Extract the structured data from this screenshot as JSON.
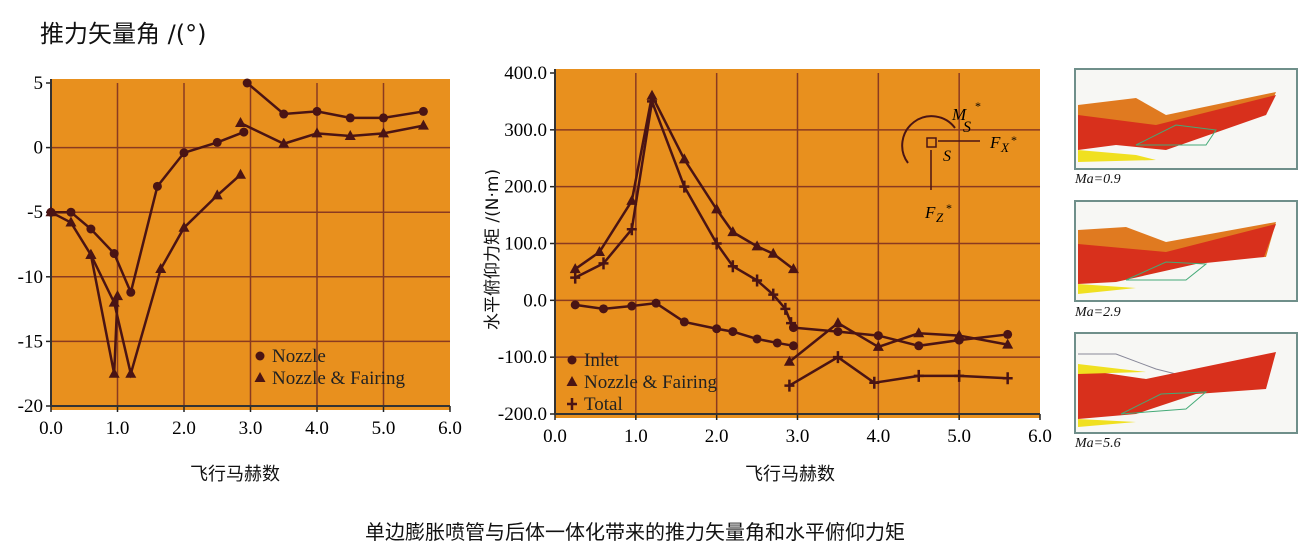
{
  "caption": "单边膨胀喷管与后体一体化带来的推力矢量角和水平俯仰力矩",
  "colors": {
    "plot_bg": "#e8901e",
    "grid": "#8a3a20",
    "line": "#4a1414"
  },
  "chart_data": [
    {
      "type": "line",
      "title": "推力矢量角 /(°)",
      "xlabel": "飞行马赫数",
      "ylabel": "",
      "xlim": [
        0,
        6
      ],
      "ylim": [
        -20,
        5
      ],
      "xticks": [
        "0.0",
        "1.0",
        "2.0",
        "3.0",
        "4.0",
        "5.0",
        "6.0"
      ],
      "yticks": [
        "5",
        "0",
        "-5",
        "-10",
        "-15",
        "-20"
      ],
      "grid": true,
      "legend_position": "bottom-right",
      "series": [
        {
          "name": "Nozzle",
          "marker": "circle",
          "segments": [
            [
              [
                0,
                -5
              ],
              [
                0.3,
                -5
              ],
              [
                0.6,
                -6.3
              ],
              [
                0.95,
                -8.2
              ],
              [
                1.2,
                -11.2
              ],
              [
                1.6,
                -3
              ],
              [
                2.0,
                -0.4
              ],
              [
                2.5,
                0.4
              ],
              [
                2.9,
                1.2
              ]
            ],
            [
              [
                2.95,
                5
              ],
              [
                3.5,
                2.6
              ],
              [
                4.0,
                2.8
              ],
              [
                4.5,
                2.3
              ],
              [
                5.0,
                2.3
              ],
              [
                5.6,
                2.8
              ]
            ]
          ]
        },
        {
          "name": "Nozzle & Fairing",
          "marker": "triangle",
          "segments": [
            [
              [
                0,
                -5
              ],
              [
                0.3,
                -5.8
              ],
              [
                0.6,
                -8.3
              ],
              [
                0.95,
                -12
              ],
              [
                1.2,
                -17.5
              ],
              [
                1.65,
                -9.4
              ],
              [
                2.0,
                -6.2
              ],
              [
                2.5,
                -3.7
              ],
              [
                2.85,
                -2.1
              ]
            ],
            [
              [
                0.6,
                -8.3
              ],
              [
                0.95,
                -17.5
              ],
              [
                1.0,
                -11.5
              ]
            ],
            [
              [
                2.85,
                1.9
              ],
              [
                3.5,
                0.3
              ],
              [
                4.0,
                1.1
              ],
              [
                4.5,
                0.9
              ],
              [
                5.0,
                1.1
              ],
              [
                5.6,
                1.7
              ]
            ]
          ]
        }
      ]
    },
    {
      "type": "line",
      "title": "",
      "xlabel": "飞行马赫数",
      "ylabel": "水平俯仰力矩 /(N·m)",
      "xlim": [
        0,
        6
      ],
      "ylim": [
        -200,
        400
      ],
      "xticks": [
        "0.0",
        "1.0",
        "2.0",
        "3.0",
        "4.0",
        "5.0",
        "6.0"
      ],
      "yticks": [
        "400.0",
        "300.0",
        "200.0",
        "100.0",
        "0.0",
        "-100.0",
        "-200.0"
      ],
      "grid": true,
      "legend_position": "bottom-left",
      "annotation": {
        "moment": "M",
        "moment_sub": "S",
        "point": "S",
        "fx": "F",
        "fx_sub": "X",
        "fz": "F",
        "fz_sub": "Z",
        "star": "*"
      },
      "series": [
        {
          "name": "Inlet",
          "marker": "circle",
          "segments": [
            [
              [
                0.25,
                -8
              ],
              [
                0.6,
                -15
              ],
              [
                0.95,
                -10
              ],
              [
                1.25,
                -5
              ],
              [
                1.6,
                -38
              ],
              [
                2.0,
                -50
              ],
              [
                2.2,
                -55
              ],
              [
                2.5,
                -68
              ],
              [
                2.75,
                -75
              ],
              [
                2.95,
                -80
              ]
            ],
            [
              [
                2.95,
                -48
              ],
              [
                3.5,
                -55
              ],
              [
                4.0,
                -62
              ],
              [
                4.5,
                -80
              ],
              [
                5.0,
                -70
              ],
              [
                5.6,
                -60
              ]
            ]
          ]
        },
        {
          "name": "Nozzle & Fairing",
          "marker": "triangle",
          "segments": [
            [
              [
                0.25,
                55
              ],
              [
                0.55,
                85
              ],
              [
                0.95,
                175
              ],
              [
                1.2,
                360
              ],
              [
                1.6,
                248
              ],
              [
                2.0,
                160
              ],
              [
                2.2,
                120
              ],
              [
                2.5,
                95
              ],
              [
                2.7,
                82
              ],
              [
                2.95,
                55
              ]
            ],
            [
              [
                2.9,
                -108
              ],
              [
                3.5,
                -40
              ],
              [
                4.0,
                -82
              ],
              [
                4.5,
                -58
              ],
              [
                5.0,
                -62
              ],
              [
                5.6,
                -78
              ]
            ]
          ]
        },
        {
          "name": "Total",
          "marker": "plus",
          "segments": [
            [
              [
                0.25,
                40
              ],
              [
                0.6,
                65
              ],
              [
                0.95,
                125
              ],
              [
                1.2,
                350
              ],
              [
                1.6,
                200
              ],
              [
                2.0,
                100
              ],
              [
                2.2,
                60
              ],
              [
                2.5,
                35
              ],
              [
                2.7,
                10
              ],
              [
                2.85,
                -15
              ],
              [
                2.92,
                -40
              ]
            ],
            [
              [
                2.9,
                -150
              ],
              [
                3.5,
                -100
              ],
              [
                3.95,
                -145
              ],
              [
                4.5,
                -133
              ],
              [
                5.0,
                -133
              ],
              [
                5.6,
                -137
              ]
            ]
          ]
        }
      ]
    }
  ],
  "images": [
    {
      "label": "Ma=0.9",
      "nozzle_shape": "subsonic"
    },
    {
      "label": "Ma=2.9",
      "nozzle_shape": "transonic"
    },
    {
      "label": "Ma=5.6",
      "nozzle_shape": "hypersonic"
    }
  ]
}
